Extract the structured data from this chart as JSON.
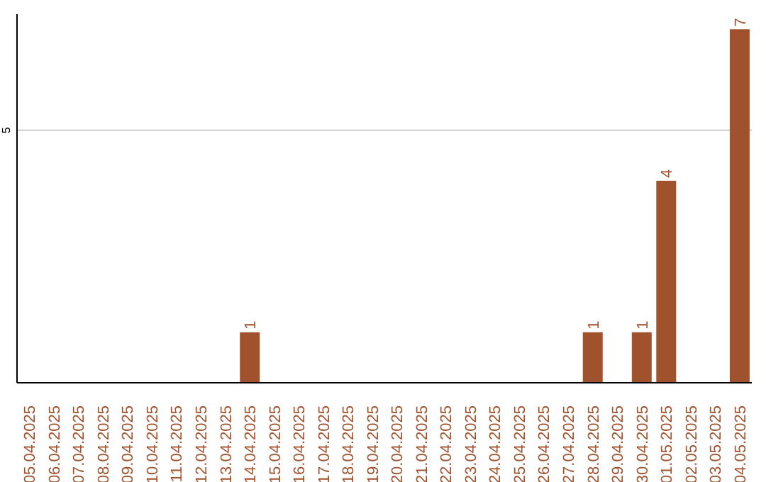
{
  "chart_data": {
    "type": "bar",
    "categories": [
      "05.04.2025",
      "06.04.2025",
      "07.04.2025",
      "08.04.2025",
      "09.04.2025",
      "10.04.2025",
      "11.04.2025",
      "12.04.2025",
      "13.04.2025",
      "14.04.2025",
      "15.04.2025",
      "16.04.2025",
      "17.04.2025",
      "18.04.2025",
      "19.04.2025",
      "20.04.2025",
      "21.04.2025",
      "22.04.2025",
      "23.04.2025",
      "24.04.2025",
      "25.04.2025",
      "26.04.2025",
      "27.04.2025",
      "28.04.2025",
      "29.04.2025",
      "30.04.2025",
      "01.05.2025",
      "02.05.2025",
      "03.05.2025",
      "04.05.2025"
    ],
    "values": [
      0,
      0,
      0,
      0,
      0,
      0,
      0,
      0,
      0,
      1,
      0,
      0,
      0,
      0,
      0,
      0,
      0,
      0,
      0,
      0,
      0,
      0,
      0,
      1,
      0,
      1,
      4,
      0,
      0,
      7
    ],
    "value_labels": [
      null,
      null,
      null,
      null,
      null,
      null,
      null,
      null,
      null,
      "1",
      null,
      null,
      null,
      null,
      null,
      null,
      null,
      null,
      null,
      null,
      null,
      null,
      null,
      "1",
      null,
      "1",
      "4",
      null,
      null,
      "7"
    ],
    "color": "#a0522d",
    "ylim": [
      0,
      7.3
    ],
    "yticks": [
      5
    ],
    "grid": "y"
  }
}
